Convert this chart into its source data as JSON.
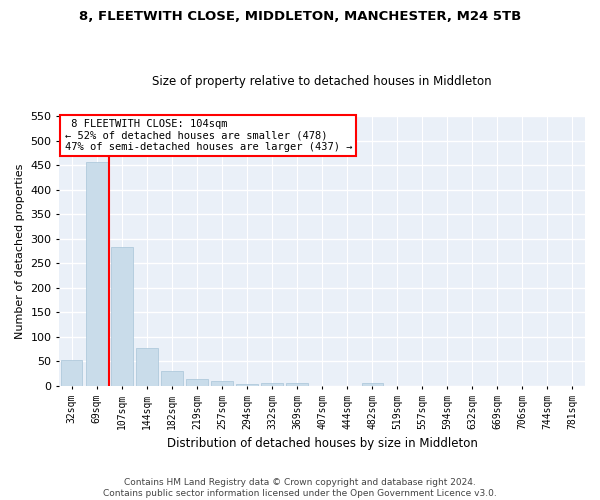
{
  "title": "8, FLEETWITH CLOSE, MIDDLETON, MANCHESTER, M24 5TB",
  "subtitle": "Size of property relative to detached houses in Middleton",
  "xlabel": "Distribution of detached houses by size in Middleton",
  "ylabel": "Number of detached properties",
  "bar_color": "#c9dcea",
  "bar_edge_color": "#a8c4d8",
  "background_color": "#eaf0f8",
  "grid_color": "#ffffff",
  "categories": [
    "32sqm",
    "69sqm",
    "107sqm",
    "144sqm",
    "182sqm",
    "219sqm",
    "257sqm",
    "294sqm",
    "332sqm",
    "369sqm",
    "407sqm",
    "444sqm",
    "482sqm",
    "519sqm",
    "557sqm",
    "594sqm",
    "632sqm",
    "669sqm",
    "706sqm",
    "744sqm",
    "781sqm"
  ],
  "values": [
    52,
    457,
    283,
    77,
    30,
    13,
    9,
    4,
    5,
    5,
    0,
    0,
    5,
    0,
    0,
    0,
    0,
    0,
    0,
    0,
    0
  ],
  "property_label": "8 FLEETWITH CLOSE: 104sqm",
  "pct_smaller": 52,
  "n_smaller": 478,
  "pct_larger": 47,
  "n_larger": 437,
  "vline_bar_index": 2,
  "ylim": [
    0,
    550
  ],
  "yticks": [
    0,
    50,
    100,
    150,
    200,
    250,
    300,
    350,
    400,
    450,
    500,
    550
  ],
  "footer_line1": "Contains HM Land Registry data © Crown copyright and database right 2024.",
  "footer_line2": "Contains public sector information licensed under the Open Government Licence v3.0."
}
